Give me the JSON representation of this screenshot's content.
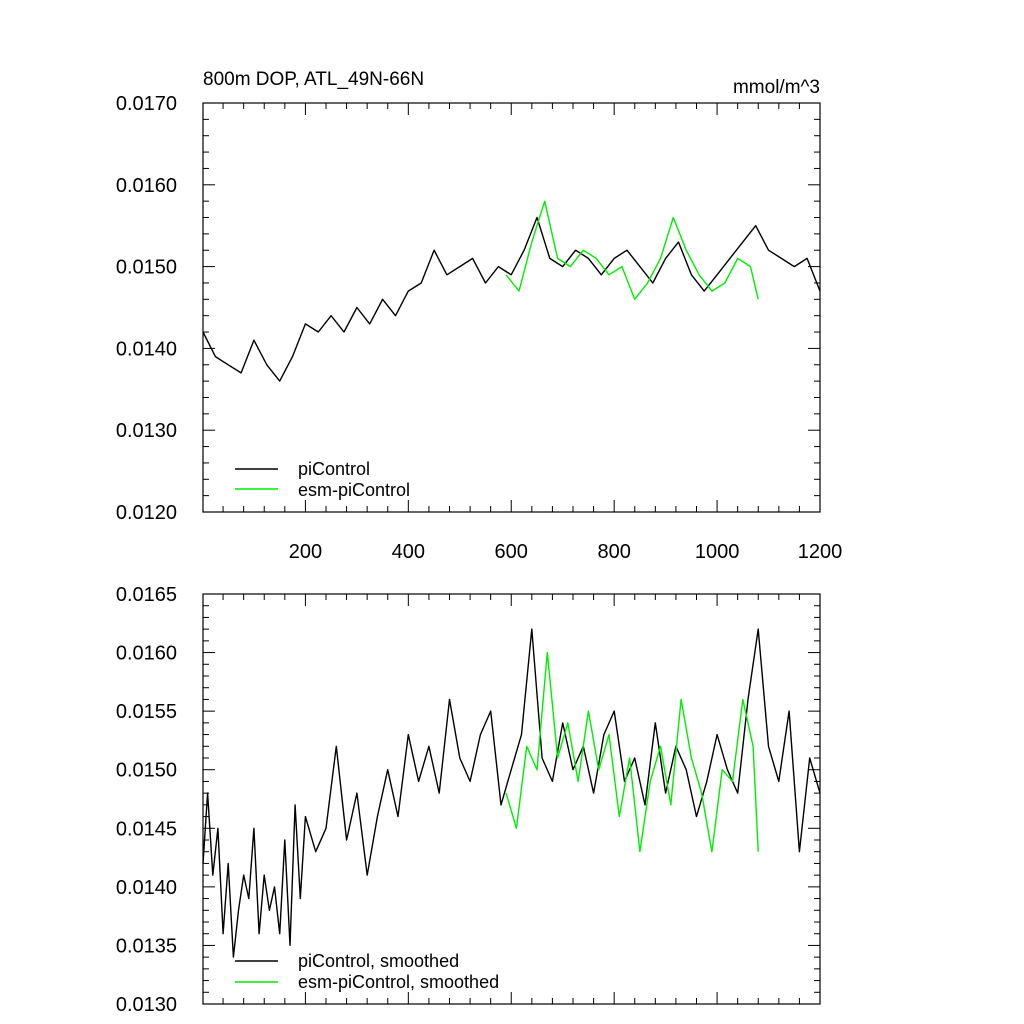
{
  "chart_data": [
    {
      "type": "line",
      "title": "800m DOP, ATL_49N-66N",
      "units": "mmol/m^3",
      "xlim": [
        1,
        1200
      ],
      "ylim": [
        0.012,
        0.017
      ],
      "xticks": [
        200,
        400,
        600,
        800,
        1000,
        1200
      ],
      "xtick_labels": [
        "200",
        "400",
        "600",
        "800",
        "1000",
        "1200"
      ],
      "yticks": [
        0.012,
        0.013,
        0.014,
        0.015,
        0.016,
        0.017
      ],
      "ytick_labels": [
        "0.0120",
        "0.0130",
        "0.0140",
        "0.0150",
        "0.0160",
        "0.0170"
      ],
      "legend_position": "bottom-left",
      "colors": {
        "piControl": "#000000",
        "esm-piControl": "#00ee00"
      },
      "series": [
        {
          "name": "piControl",
          "x": [
            1,
            25,
            50,
            75,
            100,
            125,
            150,
            175,
            200,
            225,
            250,
            275,
            300,
            325,
            350,
            375,
            400,
            425,
            450,
            475,
            500,
            525,
            550,
            575,
            600,
            625,
            650,
            675,
            700,
            725,
            750,
            775,
            800,
            825,
            850,
            875,
            900,
            925,
            950,
            975,
            1000,
            1025,
            1050,
            1075,
            1100,
            1125,
            1150,
            1175,
            1200
          ],
          "y": [
            0.0142,
            0.0139,
            0.0138,
            0.0137,
            0.0141,
            0.0138,
            0.0136,
            0.0139,
            0.0143,
            0.0142,
            0.0144,
            0.0142,
            0.0145,
            0.0143,
            0.0146,
            0.0144,
            0.0147,
            0.0148,
            0.0152,
            0.0149,
            0.015,
            0.0151,
            0.0148,
            0.015,
            0.0149,
            0.0152,
            0.0156,
            0.0151,
            0.015,
            0.0152,
            0.0151,
            0.0149,
            0.0151,
            0.0152,
            0.015,
            0.0148,
            0.0151,
            0.0153,
            0.0149,
            0.0147,
            0.0149,
            0.0151,
            0.0153,
            0.0155,
            0.0152,
            0.0151,
            0.015,
            0.0151,
            0.0147
          ]
        },
        {
          "name": "esm-piControl",
          "x": [
            590,
            615,
            640,
            665,
            690,
            715,
            740,
            765,
            790,
            815,
            840,
            865,
            890,
            915,
            940,
            965,
            990,
            1015,
            1040,
            1065,
            1080
          ],
          "y": [
            0.0149,
            0.0147,
            0.0153,
            0.0158,
            0.0151,
            0.015,
            0.0152,
            0.0151,
            0.0149,
            0.015,
            0.0146,
            0.0148,
            0.0151,
            0.0156,
            0.0152,
            0.0149,
            0.0147,
            0.0148,
            0.0151,
            0.015,
            0.0146
          ]
        }
      ]
    },
    {
      "type": "line",
      "xlim": [
        1,
        1200
      ],
      "ylim": [
        0.013,
        0.0165
      ],
      "yticks": [
        0.013,
        0.0135,
        0.014,
        0.0145,
        0.015,
        0.0155,
        0.016,
        0.0165
      ],
      "ytick_labels": [
        "0.0130",
        "0.0135",
        "0.0140",
        "0.0145",
        "0.0150",
        "0.0155",
        "0.0160",
        "0.0165"
      ],
      "legend_position": "bottom-left",
      "colors": {
        "piControl, smoothed": "#000000",
        "esm-piControl, smoothed": "#00ee00"
      },
      "series": [
        {
          "name": "piControl, smoothed",
          "x": [
            1,
            10,
            20,
            30,
            40,
            50,
            60,
            70,
            80,
            90,
            100,
            110,
            120,
            130,
            140,
            150,
            160,
            170,
            180,
            190,
            200,
            220,
            240,
            260,
            280,
            300,
            320,
            340,
            360,
            380,
            400,
            420,
            440,
            460,
            480,
            500,
            520,
            540,
            560,
            580,
            600,
            620,
            640,
            660,
            680,
            700,
            720,
            740,
            760,
            780,
            800,
            820,
            840,
            860,
            880,
            900,
            920,
            940,
            960,
            980,
            1000,
            1020,
            1040,
            1060,
            1080,
            1100,
            1120,
            1140,
            1160,
            1180,
            1200
          ],
          "y": [
            0.0142,
            0.0148,
            0.0141,
            0.0145,
            0.0136,
            0.0142,
            0.0134,
            0.0138,
            0.0141,
            0.0139,
            0.0145,
            0.0136,
            0.0141,
            0.0138,
            0.014,
            0.0136,
            0.0144,
            0.0135,
            0.0147,
            0.0139,
            0.0146,
            0.0143,
            0.0145,
            0.0152,
            0.0144,
            0.0148,
            0.0141,
            0.0146,
            0.015,
            0.0146,
            0.0153,
            0.0149,
            0.0152,
            0.0148,
            0.0156,
            0.0151,
            0.0149,
            0.0153,
            0.0155,
            0.0147,
            0.015,
            0.0153,
            0.0162,
            0.0151,
            0.0149,
            0.0154,
            0.015,
            0.0152,
            0.0148,
            0.0153,
            0.0155,
            0.0149,
            0.0151,
            0.0147,
            0.0154,
            0.0148,
            0.0152,
            0.015,
            0.0146,
            0.0149,
            0.0153,
            0.015,
            0.0148,
            0.0156,
            0.0162,
            0.0152,
            0.0149,
            0.0155,
            0.0143,
            0.0151,
            0.0148
          ]
        },
        {
          "name": "esm-piControl, smoothed",
          "x": [
            590,
            610,
            630,
            650,
            670,
            690,
            710,
            730,
            750,
            770,
            790,
            810,
            830,
            850,
            870,
            890,
            910,
            930,
            950,
            970,
            990,
            1010,
            1030,
            1050,
            1070,
            1080
          ],
          "y": [
            0.0148,
            0.0145,
            0.0152,
            0.015,
            0.016,
            0.0151,
            0.0154,
            0.0149,
            0.0155,
            0.015,
            0.0153,
            0.0146,
            0.0151,
            0.0143,
            0.0149,
            0.0152,
            0.0147,
            0.0156,
            0.0151,
            0.0148,
            0.0143,
            0.015,
            0.0149,
            0.0156,
            0.0152,
            0.0143
          ]
        }
      ]
    }
  ]
}
